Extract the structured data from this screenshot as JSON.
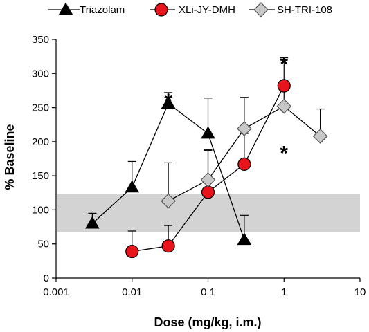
{
  "chart_data": {
    "type": "line",
    "xlabel": "Dose (mg/kg, i.m.)",
    "ylabel": "% Baseline",
    "x_scale": "log",
    "xlim": [
      0.001,
      10
    ],
    "ylim": [
      0,
      350
    ],
    "x_ticks": [
      "0.001",
      "0.01",
      "0.1",
      "1",
      "10"
    ],
    "y_ticks": [
      "0",
      "50",
      "100",
      "150",
      "200",
      "250",
      "300",
      "350"
    ],
    "legend": "top",
    "band": {
      "y_low": 68,
      "y_high": 123,
      "color": "#d3d3d3"
    },
    "series": [
      {
        "name": "Triazolam",
        "marker": "triangle",
        "color": "#000000",
        "x": [
          0.003,
          0.01,
          0.03,
          0.1,
          0.3
        ],
        "y": [
          80,
          133,
          256,
          212,
          56
        ],
        "err": [
          15,
          38,
          16,
          52,
          36
        ]
      },
      {
        "name": "XLi-JY-DMH",
        "marker": "circle",
        "color": "#e8141b",
        "x": [
          0.01,
          0.03,
          0.1,
          0.3,
          1
        ],
        "y": [
          39,
          47,
          126,
          167,
          282
        ],
        "err": [
          30,
          30,
          61,
          45,
          41
        ]
      },
      {
        "name": "SH-TRI-108",
        "marker": "diamond",
        "color": "#c8c8c8",
        "x": [
          0.03,
          0.1,
          0.3,
          1,
          3
        ],
        "y": [
          113,
          144,
          219,
          252,
          208
        ],
        "err": [
          56,
          44,
          46,
          25,
          40
        ]
      }
    ],
    "annotations": [
      {
        "text": "*",
        "x": 0.03,
        "y": 268
      },
      {
        "text": "*",
        "x": 1,
        "y": 322
      },
      {
        "text": "*",
        "x": 1,
        "y": 191
      }
    ]
  }
}
